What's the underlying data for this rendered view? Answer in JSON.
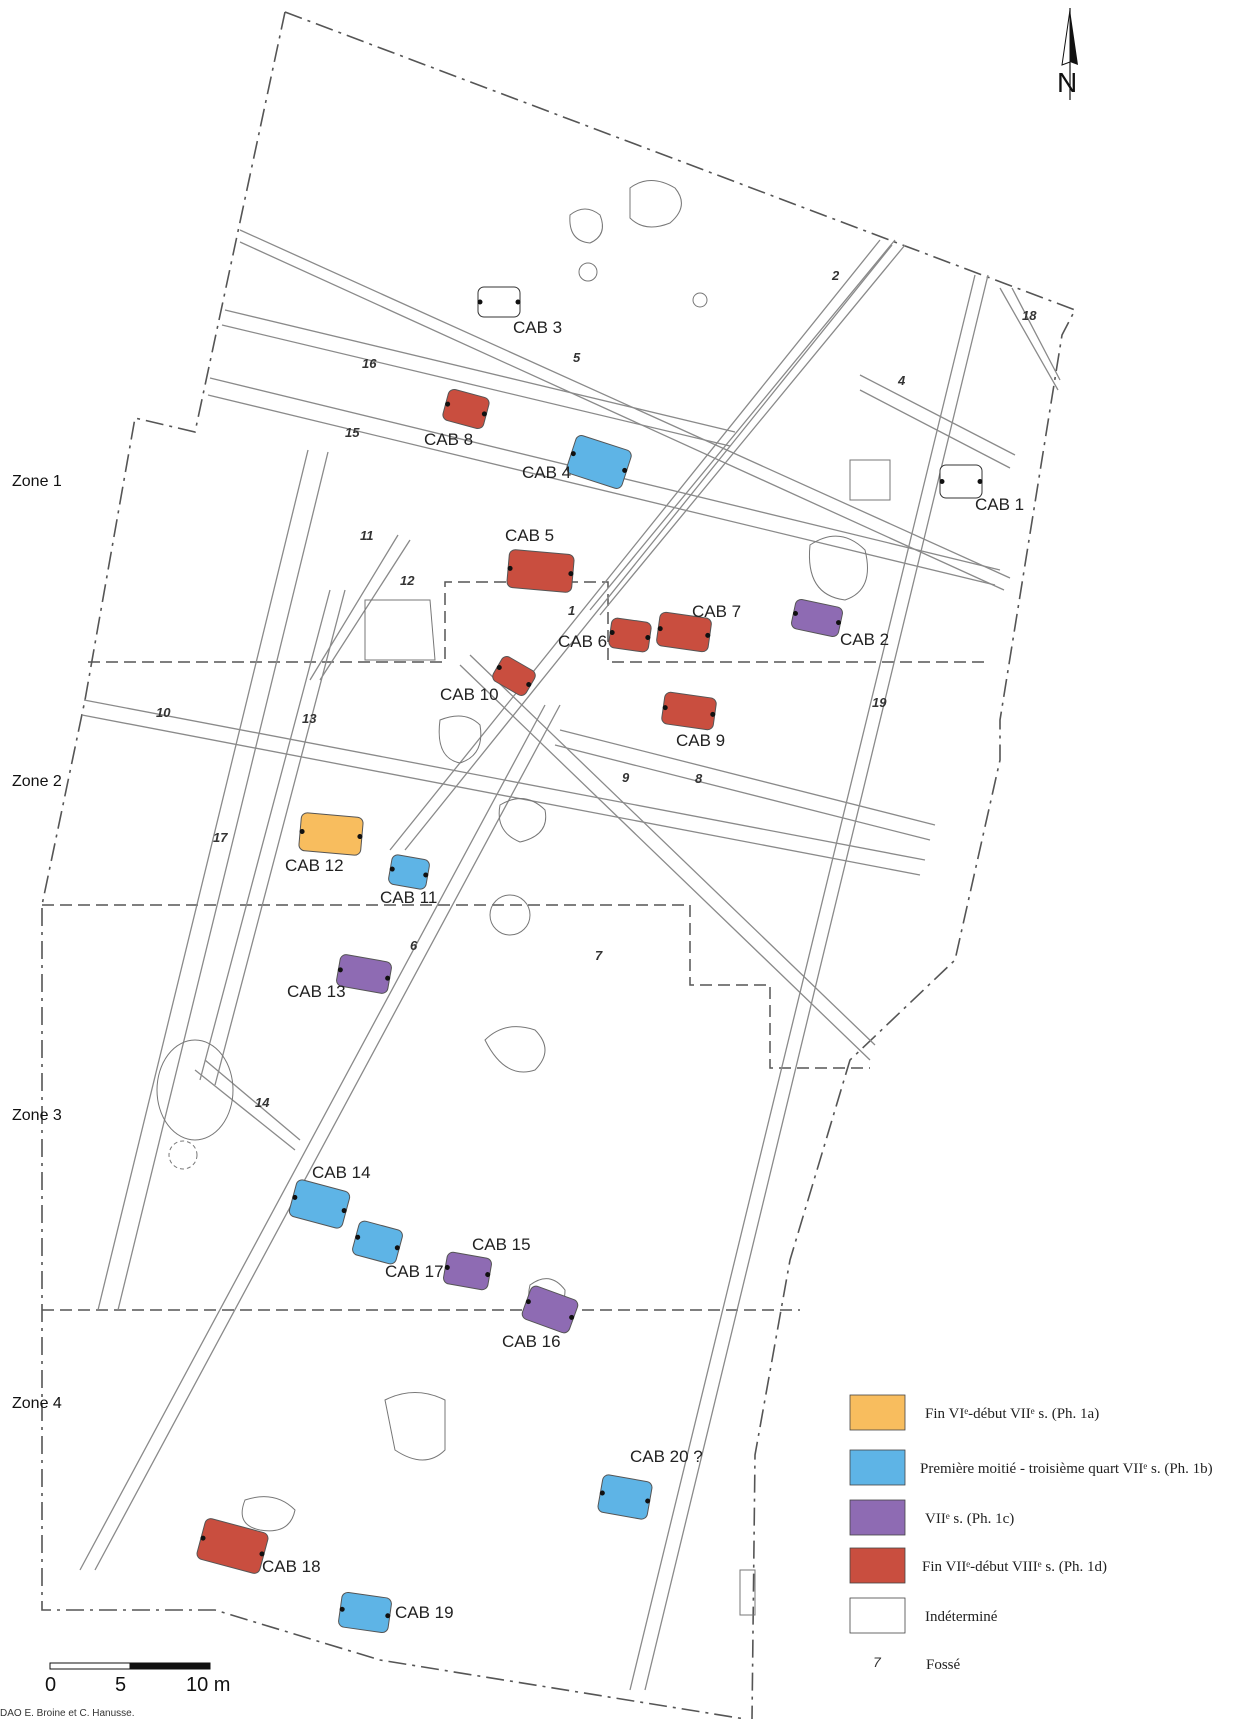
{
  "north_label": "N",
  "zones": [
    {
      "id": "z1",
      "label": "Zone 1"
    },
    {
      "id": "z2",
      "label": "Zone 2"
    },
    {
      "id": "z3",
      "label": "Zone 3"
    },
    {
      "id": "z4",
      "label": "Zone 4"
    }
  ],
  "phases": {
    "1a": {
      "color": "#f8bd5e",
      "label": "Fin VIᵉ-début VIIᵉ s.  (Ph. 1a)"
    },
    "1b": {
      "color": "#5eb4e6",
      "label": "Première moitié - troisième quart VIIᵉ s. (Ph. 1b)"
    },
    "1c": {
      "color": "#8e6bb3",
      "label": "VIIᵉ s. (Ph. 1c)"
    },
    "1d": {
      "color": "#c94e3f",
      "label": "Fin VIIᵉ-début VIIIᵉ s.  (Ph. 1d)"
    },
    "ind": {
      "color": "#ffffff",
      "label": "Indéterminé"
    }
  },
  "legend_ditch": {
    "symbol": "7",
    "label": "Fossé"
  },
  "cabanes": [
    {
      "id": "cab1",
      "label": "CAB 1",
      "phase": "ind"
    },
    {
      "id": "cab2",
      "label": "CAB 2",
      "phase": "1c"
    },
    {
      "id": "cab3",
      "label": "CAB 3",
      "phase": "ind"
    },
    {
      "id": "cab4",
      "label": "CAB 4",
      "phase": "1b"
    },
    {
      "id": "cab5",
      "label": "CAB 5",
      "phase": "1d"
    },
    {
      "id": "cab6",
      "label": "CAB 6",
      "phase": "1d"
    },
    {
      "id": "cab7",
      "label": "CAB 7",
      "phase": "1d"
    },
    {
      "id": "cab8",
      "label": "CAB 8",
      "phase": "1d"
    },
    {
      "id": "cab9",
      "label": "CAB 9",
      "phase": "1d"
    },
    {
      "id": "cab10",
      "label": "CAB 10",
      "phase": "1d"
    },
    {
      "id": "cab11",
      "label": "CAB 11",
      "phase": "1b"
    },
    {
      "id": "cab12",
      "label": "CAB 12",
      "phase": "1a"
    },
    {
      "id": "cab13",
      "label": "CAB 13",
      "phase": "1c"
    },
    {
      "id": "cab14",
      "label": "CAB 14",
      "phase": "1b"
    },
    {
      "id": "cab15",
      "label": "CAB 15",
      "phase": "1c"
    },
    {
      "id": "cab16",
      "label": "CAB 16",
      "phase": "1c"
    },
    {
      "id": "cab17",
      "label": "CAB 17",
      "phase": "1b"
    },
    {
      "id": "cab18",
      "label": "CAB 18",
      "phase": "1d"
    },
    {
      "id": "cab19",
      "label": "CAB 19",
      "phase": "1b"
    },
    {
      "id": "cab20",
      "label": "CAB 20 ?",
      "phase": "1b"
    }
  ],
  "ditches": [
    "1",
    "2",
    "4",
    "5",
    "6",
    "7",
    "8",
    "9",
    "10",
    "11",
    "12",
    "13",
    "14",
    "15",
    "16",
    "17",
    "18",
    "19"
  ],
  "scale": {
    "ticks": [
      "0",
      "5",
      "10 m"
    ]
  },
  "credit": "DAO E. Broine et C. Hanusse."
}
